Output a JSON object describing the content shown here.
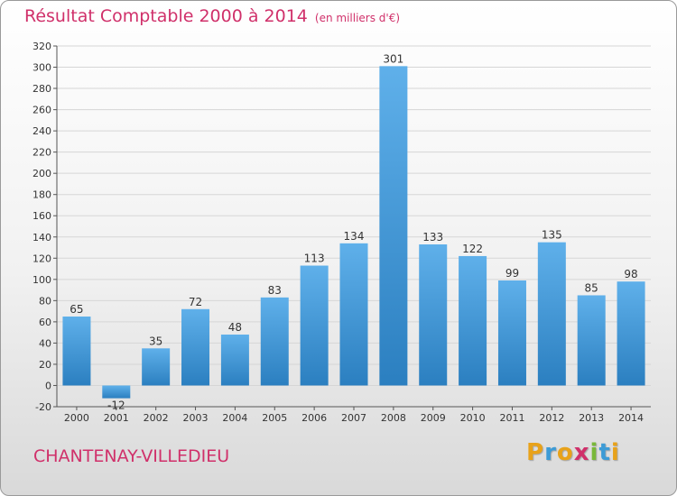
{
  "header": {
    "title": "Résultat Comptable 2000 à 2014",
    "unit": "(en milliers d'€)"
  },
  "footer": {
    "town": "CHANTENAY-VILLEDIEU",
    "logo_letters": [
      "P",
      "r",
      "o",
      "x",
      "i",
      "t",
      "i"
    ],
    "logo_colors": [
      "#e8a21a",
      "#3d9bd6",
      "#e8a21a",
      "#d0306a",
      "#79b83a",
      "#3d9bd6",
      "#e8a21a"
    ]
  },
  "colors": {
    "title": "#d0306a",
    "bar_top": "#5fb0ea",
    "bar_bottom": "#2b7fc0",
    "gridline": "#d6d6d6"
  },
  "chart_data": {
    "type": "bar",
    "title": "Résultat Comptable 2000 à 2014",
    "subtitle": "(en milliers d'€)",
    "categories": [
      "2000",
      "2001",
      "2002",
      "2003",
      "2004",
      "2005",
      "2006",
      "2007",
      "2008",
      "2009",
      "2010",
      "2011",
      "2012",
      "2013",
      "2014"
    ],
    "values": [
      65,
      -12,
      35,
      72,
      48,
      83,
      113,
      134,
      301,
      133,
      122,
      99,
      135,
      85,
      98
    ],
    "ylim": [
      -20,
      320
    ],
    "yticks": [
      -20,
      0,
      20,
      40,
      60,
      80,
      100,
      120,
      140,
      160,
      180,
      200,
      220,
      240,
      260,
      280,
      300,
      320
    ],
    "grid": true,
    "legend": "none"
  }
}
